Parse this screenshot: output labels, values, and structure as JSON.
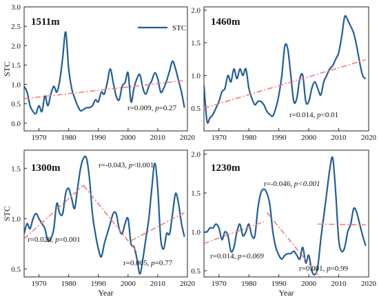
{
  "figure": {
    "legend_label": "STC",
    "series_color": "#1f5d99",
    "trend_color": "#f07b72",
    "ylabel": "STC",
    "xlabel": "Year"
  },
  "chart_data": [
    {
      "type": "line",
      "title": "1511m",
      "xlabel": "",
      "ylabel": "STC",
      "xlim": [
        1965,
        2020
      ],
      "ylim": [
        -0.2,
        3.0
      ],
      "xticks": [
        1970,
        1980,
        1990,
        2000,
        2010,
        2020
      ],
      "xtick_labels": [
        "1970",
        "1980",
        "1990",
        "2000",
        "2010",
        "2020"
      ],
      "yticks": [
        0.0,
        0.5,
        1.0,
        1.5,
        2.0,
        2.5,
        3.0
      ],
      "ytick_labels": [
        "0.0",
        "0.5",
        "1.0",
        "1.5",
        "2.0",
        "2.5",
        "3.0"
      ],
      "legend": "top-right",
      "series": [
        {
          "name": "STC",
          "x": [
            1965,
            1966,
            1967,
            1968,
            1969,
            1970,
            1971,
            1972,
            1973,
            1974,
            1975,
            1976,
            1977,
            1978,
            1979,
            1980,
            1981,
            1982,
            1983,
            1984,
            1985,
            1986,
            1987,
            1988,
            1989,
            1990,
            1991,
            1992,
            1993,
            1994,
            1995,
            1996,
            1997,
            1998,
            1999,
            2000,
            2001,
            2002,
            2003,
            2004,
            2005,
            2006,
            2007,
            2008,
            2009,
            2010,
            2011,
            2012,
            2013,
            2014,
            2015,
            2016,
            2017,
            2018,
            2019
          ],
          "y": [
            0.95,
            0.8,
            0.45,
            0.3,
            0.25,
            0.45,
            0.3,
            0.7,
            0.45,
            0.75,
            0.95,
            0.8,
            1.1,
            1.7,
            2.35,
            1.4,
            0.9,
            0.65,
            0.45,
            0.32,
            0.35,
            0.4,
            0.4,
            0.45,
            0.6,
            0.55,
            0.8,
            0.75,
            1.05,
            1.4,
            1.05,
            0.7,
            0.6,
            0.95,
            1.05,
            1.3,
            0.55,
            0.9,
            1.15,
            1.25,
            0.9,
            0.75,
            0.95,
            1.1,
            1.3,
            1.15,
            0.8,
            0.9,
            1.1,
            1.35,
            1.6,
            1.4,
            1.1,
            0.8,
            0.4
          ]
        }
      ],
      "trends": [
        {
          "x": [
            1965,
            2019
          ],
          "y": [
            0.63,
            1.1
          ]
        }
      ],
      "annotations": [
        {
          "parts": [
            {
              "t": "r=0.009, ",
              "i": false
            },
            {
              "t": "p",
              "i": true
            },
            {
              "t": "=0.27",
              "i": false
            }
          ]
        }
      ]
    },
    {
      "type": "line",
      "title": "1460m",
      "xlabel": "",
      "ylabel": "",
      "xlim": [
        1965,
        2020
      ],
      "ylim": [
        0.15,
        2.05
      ],
      "xticks": [
        1970,
        1980,
        1990,
        2000,
        2010,
        2020
      ],
      "xtick_labels": [
        "1970",
        "1980",
        "1990",
        "2000",
        "2010",
        "2020"
      ],
      "yticks": [
        0.5,
        1.0,
        1.5,
        2.0
      ],
      "ytick_labels": [
        "0.5",
        "1.0",
        "1.5",
        "2.0"
      ],
      "series": [
        {
          "name": "",
          "x": [
            1965,
            1966,
            1967,
            1968,
            1969,
            1970,
            1971,
            1972,
            1973,
            1974,
            1975,
            1976,
            1977,
            1978,
            1979,
            1980,
            1981,
            1982,
            1983,
            1984,
            1985,
            1986,
            1987,
            1988,
            1989,
            1990,
            1991,
            1992,
            1993,
            1994,
            1995,
            1996,
            1997,
            1998,
            1999,
            2000,
            2001,
            2002,
            2003,
            2004,
            2005,
            2006,
            2007,
            2008,
            2009,
            2010,
            2011,
            2012,
            2013,
            2014,
            2015,
            2016,
            2017,
            2018,
            2019
          ],
          "y": [
            0.85,
            0.3,
            0.35,
            0.4,
            0.5,
            0.6,
            0.75,
            0.8,
            1.0,
            0.9,
            1.1,
            0.95,
            1.1,
            1.0,
            1.1,
            0.8,
            0.65,
            0.55,
            0.6,
            0.6,
            0.55,
            0.45,
            0.4,
            0.38,
            0.5,
            0.7,
            1.0,
            1.45,
            1.4,
            1.0,
            0.6,
            0.65,
            0.95,
            1.0,
            0.6,
            0.6,
            0.8,
            0.9,
            0.8,
            0.7,
            0.9,
            1.0,
            1.1,
            1.15,
            1.25,
            1.35,
            1.6,
            1.9,
            1.85,
            1.75,
            1.65,
            1.45,
            1.2,
            1.0,
            0.95
          ]
        }
      ],
      "trends": [
        {
          "x": [
            1965,
            2019
          ],
          "y": [
            0.5,
            1.24
          ]
        }
      ],
      "annotations": [
        {
          "parts": [
            {
              "t": "r=0.014, ",
              "i": false
            },
            {
              "t": "p",
              "i": true
            },
            {
              "t": "<0.01",
              "i": false
            }
          ]
        }
      ]
    },
    {
      "type": "line",
      "title": "1300m",
      "xlabel": "Year",
      "ylabel": "STC",
      "xlim": [
        1965,
        2020
      ],
      "ylim": [
        0.42,
        1.68
      ],
      "xticks": [
        1970,
        1980,
        1990,
        2000,
        2010,
        2020
      ],
      "xtick_labels": [
        "1970",
        "1980",
        "1990",
        "2000",
        "2010",
        "2020"
      ],
      "yticks": [
        0.5,
        1.0,
        1.5
      ],
      "ytick_labels": [
        "0.5",
        "1.0",
        "1.5"
      ],
      "series": [
        {
          "name": "",
          "x": [
            1965,
            1966,
            1967,
            1968,
            1969,
            1970,
            1971,
            1972,
            1973,
            1974,
            1975,
            1976,
            1977,
            1978,
            1979,
            1980,
            1981,
            1982,
            1983,
            1984,
            1985,
            1986,
            1987,
            1988,
            1989,
            1990,
            1991,
            1992,
            1993,
            1994,
            1995,
            1996,
            1997,
            1998,
            1999,
            2000,
            2001,
            2002,
            2003,
            2004,
            2005,
            2006,
            2007,
            2008,
            2009,
            2010,
            2011,
            2012,
            2013,
            2014,
            2015,
            2016,
            2017,
            2018,
            2019
          ],
          "y": [
            0.85,
            0.95,
            0.9,
            1.0,
            1.05,
            1.0,
            0.95,
            0.9,
            0.78,
            0.8,
            0.9,
            1.15,
            1.05,
            1.05,
            1.25,
            1.3,
            1.2,
            1.1,
            1.3,
            1.5,
            1.6,
            1.6,
            1.4,
            1.05,
            0.85,
            0.7,
            0.62,
            0.75,
            0.85,
            0.95,
            1.05,
            1.05,
            0.9,
            0.85,
            0.95,
            1.0,
            0.75,
            0.72,
            0.6,
            0.45,
            0.6,
            0.8,
            1.0,
            1.3,
            1.55,
            1.3,
            0.8,
            0.7,
            0.85,
            0.85,
            1.05,
            1.25,
            1.15,
            0.95,
            0.82
          ]
        }
      ],
      "trends": [
        {
          "x": [
            1965,
            1985
          ],
          "y": [
            0.8,
            1.33
          ]
        },
        {
          "x": [
            1985,
            2003
          ],
          "y": [
            1.33,
            0.67
          ]
        },
        {
          "x": [
            2001,
            2019
          ],
          "y": [
            0.78,
            1.06
          ]
        }
      ],
      "annotations": [
        {
          "parts": [
            {
              "t": "r=-0.043, ",
              "i": false
            },
            {
              "t": "p",
              "i": true
            },
            {
              "t": "<0.001",
              "i": false
            }
          ]
        },
        {
          "parts": [
            {
              "t": "r=0.026, ",
              "i": false
            },
            {
              "t": "p",
              "i": true
            },
            {
              "t": "=0.001",
              "i": false
            }
          ]
        },
        {
          "parts": [
            {
              "t": "r=0.005, ",
              "i": false
            },
            {
              "t": "p",
              "i": true
            },
            {
              "t": "=0.77",
              "i": false
            }
          ]
        }
      ]
    },
    {
      "type": "line",
      "title": "1230m",
      "xlabel": "Year",
      "ylabel": "",
      "xlim": [
        1965,
        2020
      ],
      "ylim": [
        0.42,
        2.05
      ],
      "xticks": [
        1970,
        1980,
        1990,
        2000,
        2010,
        2020
      ],
      "xtick_labels": [
        "1970",
        "1980",
        "1990",
        "2000",
        "2010",
        "2020"
      ],
      "yticks": [
        0.5,
        1.0,
        1.5,
        2.0
      ],
      "ytick_labels": [
        "0.5",
        "1.0",
        "1.5",
        "2.0"
      ],
      "series": [
        {
          "name": "",
          "x": [
            1965,
            1966,
            1967,
            1968,
            1969,
            1970,
            1971,
            1972,
            1973,
            1974,
            1975,
            1976,
            1977,
            1978,
            1979,
            1980,
            1981,
            1982,
            1983,
            1984,
            1985,
            1986,
            1987,
            1988,
            1989,
            1990,
            1991,
            1992,
            1993,
            1994,
            1995,
            1996,
            1997,
            1998,
            1999,
            2000,
            2001,
            2002,
            2003,
            2004,
            2005,
            2006,
            2007,
            2008,
            2009,
            2010,
            2011,
            2012,
            2013,
            2014,
            2015,
            2016,
            2017,
            2018,
            2019
          ],
          "y": [
            1.0,
            1.0,
            1.05,
            1.05,
            1.1,
            1.05,
            0.9,
            1.0,
            0.95,
            0.75,
            0.8,
            1.0,
            1.1,
            0.95,
            1.0,
            1.1,
            0.95,
            0.95,
            1.3,
            1.5,
            1.55,
            1.5,
            1.35,
            1.0,
            0.8,
            0.7,
            0.65,
            0.7,
            0.72,
            0.72,
            0.75,
            0.7,
            0.65,
            0.8,
            0.6,
            0.7,
            0.5,
            0.45,
            0.55,
            0.9,
            1.2,
            1.5,
            1.8,
            1.95,
            1.5,
            0.9,
            0.75,
            0.8,
            1.0,
            1.1,
            1.3,
            1.25,
            1.1,
            0.95,
            0.82
          ]
        }
      ],
      "trends": [
        {
          "x": [
            1965,
            1985
          ],
          "y": [
            0.85,
            1.13
          ]
        },
        {
          "x": [
            1986,
            2003
          ],
          "y": [
            1.25,
            0.45
          ]
        },
        {
          "x": [
            2003,
            2019
          ],
          "y": [
            1.1,
            1.09
          ]
        }
      ],
      "annotations": [
        {
          "parts": [
            {
              "t": "r=-0.046, ",
              "i": false
            },
            {
              "t": "p<0.001",
              "i": true
            }
          ]
        },
        {
          "parts": [
            {
              "t": "r=0.014, ",
              "i": false
            },
            {
              "t": "p=0.069",
              "i": true
            }
          ]
        },
        {
          "parts": [
            {
              "t": "r=0.001, ",
              "i": false
            },
            {
              "t": "p",
              "i": true
            },
            {
              "t": "=0.99",
              "i": false
            }
          ]
        }
      ]
    }
  ]
}
